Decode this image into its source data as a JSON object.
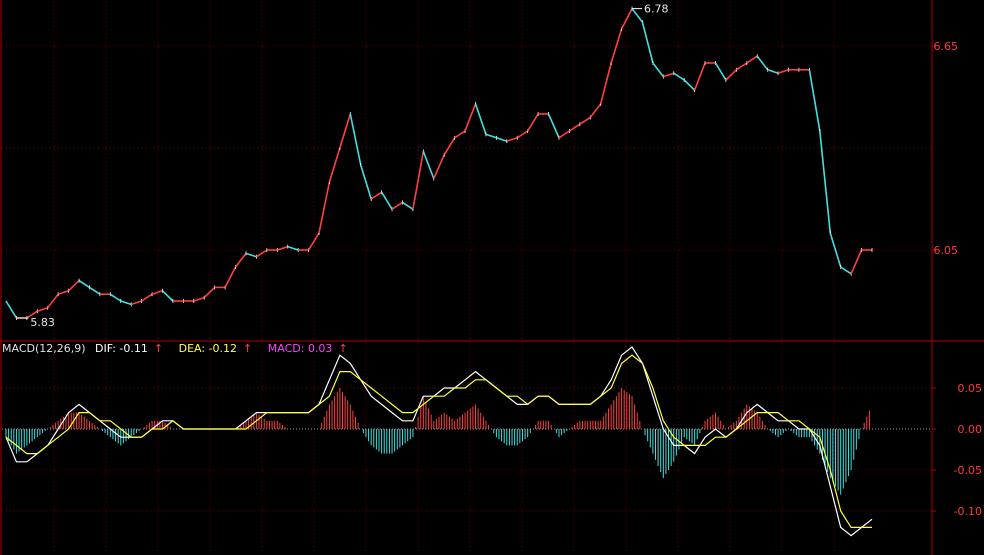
{
  "colors": {
    "background": "#000000",
    "grid": "#7a0000",
    "border": "#b00000",
    "up": "#ff4040",
    "down": "#40e0e0",
    "dif": "#ffffff",
    "dea": "#ffff40",
    "macd_label": "#ff40ff",
    "axis_text": "#ff3b3b"
  },
  "price_panel": {
    "high_annotation": "6.78",
    "low_annotation": "5.83",
    "y_ticks": [
      "6.65",
      "6.05"
    ]
  },
  "macd_panel": {
    "legend": {
      "name": "MACD(12,26,9)",
      "dif": "DIF: -0.11",
      "dea": "DEA: -0.12",
      "macd": "MACD: 0.03",
      "arrow": "↑"
    },
    "y_ticks": [
      "0.05",
      "0.00",
      "-0.05",
      "-0.10"
    ]
  },
  "chart_data": [
    {
      "type": "line",
      "xlabel": "",
      "ylabel": "",
      "ylim": [
        5.8,
        6.8
      ],
      "grid": true,
      "series": [
        {
          "name": "price",
          "values": [
            5.9,
            5.85,
            5.85,
            5.87,
            5.88,
            5.92,
            5.93,
            5.96,
            5.94,
            5.92,
            5.92,
            5.9,
            5.89,
            5.9,
            5.92,
            5.93,
            5.9,
            5.9,
            5.9,
            5.91,
            5.94,
            5.94,
            6.0,
            6.04,
            6.03,
            6.05,
            6.05,
            6.06,
            6.05,
            6.05,
            6.1,
            6.25,
            6.35,
            6.45,
            6.3,
            6.2,
            6.22,
            6.17,
            6.19,
            6.17,
            6.34,
            6.26,
            6.33,
            6.38,
            6.4,
            6.48,
            6.39,
            6.38,
            6.37,
            6.38,
            6.4,
            6.45,
            6.45,
            6.38,
            6.4,
            6.42,
            6.44,
            6.48,
            6.6,
            6.7,
            6.76,
            6.72,
            6.6,
            6.56,
            6.57,
            6.55,
            6.52,
            6.6,
            6.6,
            6.55,
            6.58,
            6.6,
            6.62,
            6.58,
            6.57,
            6.58,
            6.58,
            6.58,
            6.4,
            6.1,
            6.0,
            5.98,
            6.05,
            6.05
          ]
        }
      ]
    },
    {
      "type": "bar",
      "xlabel": "",
      "ylabel": "",
      "ylim": [
        -0.15,
        0.11
      ],
      "grid": true,
      "series": [
        {
          "name": "DIF",
          "values": [
            -0.01,
            -0.04,
            -0.04,
            -0.03,
            -0.02,
            0.0,
            0.02,
            0.03,
            0.02,
            0.01,
            0.0,
            -0.01,
            -0.01,
            -0.01,
            0.0,
            0.01,
            0.01,
            0.0,
            0.0,
            0.0,
            0.0,
            0.0,
            0.0,
            0.01,
            0.02,
            0.02,
            0.02,
            0.02,
            0.02,
            0.02,
            0.03,
            0.06,
            0.09,
            0.08,
            0.06,
            0.04,
            0.03,
            0.02,
            0.01,
            0.01,
            0.04,
            0.04,
            0.05,
            0.05,
            0.06,
            0.07,
            0.06,
            0.05,
            0.04,
            0.03,
            0.03,
            0.04,
            0.04,
            0.03,
            0.03,
            0.03,
            0.03,
            0.04,
            0.06,
            0.09,
            0.1,
            0.08,
            0.04,
            0.0,
            -0.02,
            -0.02,
            -0.03,
            -0.01,
            -0.0,
            -0.01,
            0.0,
            0.02,
            0.03,
            0.02,
            0.01,
            0.01,
            0.0,
            0.0,
            -0.02,
            -0.07,
            -0.12,
            -0.13,
            -0.12,
            -0.11
          ]
        },
        {
          "name": "DEA",
          "values": [
            -0.01,
            -0.02,
            -0.03,
            -0.03,
            -0.02,
            -0.01,
            0.0,
            0.02,
            0.02,
            0.01,
            0.01,
            0.0,
            -0.01,
            -0.01,
            0.0,
            0.0,
            0.01,
            0.0,
            0.0,
            0.0,
            0.0,
            0.0,
            0.0,
            0.0,
            0.01,
            0.02,
            0.02,
            0.02,
            0.02,
            0.02,
            0.03,
            0.04,
            0.07,
            0.07,
            0.06,
            0.05,
            0.04,
            0.03,
            0.02,
            0.02,
            0.03,
            0.04,
            0.04,
            0.05,
            0.05,
            0.06,
            0.06,
            0.05,
            0.04,
            0.04,
            0.03,
            0.04,
            0.04,
            0.03,
            0.03,
            0.03,
            0.03,
            0.04,
            0.05,
            0.08,
            0.09,
            0.08,
            0.05,
            0.01,
            -0.01,
            -0.02,
            -0.02,
            -0.02,
            -0.01,
            -0.01,
            0.0,
            0.01,
            0.02,
            0.02,
            0.02,
            0.01,
            0.01,
            0.0,
            -0.01,
            -0.05,
            -0.1,
            -0.12,
            -0.12,
            -0.12
          ]
        },
        {
          "name": "MACD",
          "values": [
            -0.01,
            -0.03,
            -0.02,
            -0.01,
            0.0,
            0.01,
            0.02,
            0.02,
            0.01,
            0.0,
            -0.01,
            -0.02,
            -0.01,
            0.0,
            0.01,
            0.01,
            0.0,
            0.0,
            0.0,
            0.0,
            0.0,
            0.0,
            0.0,
            0.01,
            0.02,
            0.01,
            0.01,
            0.0,
            0.0,
            0.0,
            0.0,
            0.03,
            0.05,
            0.03,
            0.0,
            -0.02,
            -0.03,
            -0.03,
            -0.02,
            -0.01,
            0.04,
            0.01,
            0.02,
            0.01,
            0.02,
            0.03,
            0.01,
            -0.01,
            -0.02,
            -0.02,
            -0.01,
            0.01,
            0.01,
            -0.01,
            0.0,
            0.01,
            0.01,
            0.01,
            0.03,
            0.05,
            0.04,
            0.0,
            -0.03,
            -0.06,
            -0.04,
            -0.01,
            -0.02,
            0.01,
            0.02,
            0.0,
            0.01,
            0.03,
            0.02,
            0.0,
            -0.01,
            0.0,
            -0.01,
            -0.01,
            -0.03,
            -0.06,
            -0.08,
            -0.05,
            0.0,
            0.03
          ]
        }
      ]
    }
  ]
}
